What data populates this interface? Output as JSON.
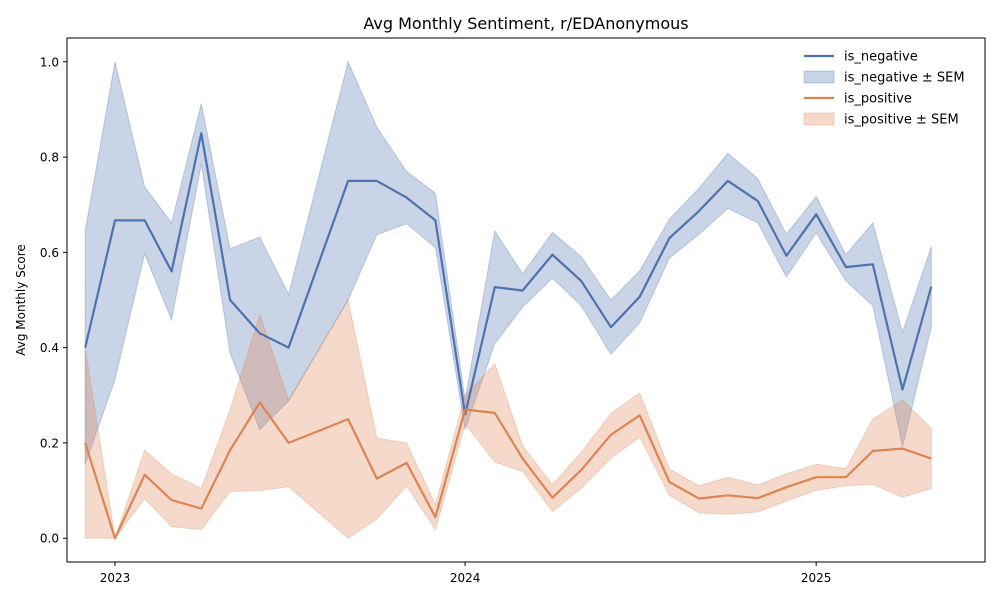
{
  "chart_data": {
    "type": "line",
    "title": "Avg Monthly Sentiment, r/EDAnonymous",
    "xlabel": "",
    "ylabel": "Avg Monthly Score",
    "x_ticks": [
      "2023",
      "2024",
      "2025"
    ],
    "x_tick_dates": [
      "2023-01-01",
      "2024-01-01",
      "2025-01-01"
    ],
    "x_range": [
      "2022-11-12",
      "2025-06-26"
    ],
    "y_ticks": [
      "0.0",
      "0.2",
      "0.4",
      "0.6",
      "0.8",
      "1.0"
    ],
    "ylim": [
      -0.05,
      1.05
    ],
    "legend_position": "top-right",
    "grid": false,
    "x": [
      "2022-12-01",
      "2023-01-01",
      "2023-02-01",
      "2023-03-01",
      "2023-04-01",
      "2023-05-01",
      "2023-06-01",
      "2023-07-01",
      "2023-09-01",
      "2023-10-01",
      "2023-11-01",
      "2023-12-01",
      "2024-01-01",
      "2024-02-01",
      "2024-03-01",
      "2024-04-01",
      "2024-05-01",
      "2024-06-01",
      "2024-07-01",
      "2024-08-01",
      "2024-09-01",
      "2024-10-01",
      "2024-11-01",
      "2024-12-01",
      "2025-01-01",
      "2025-02-01",
      "2025-03-01",
      "2025-04-01",
      "2025-05-01"
    ],
    "series": [
      {
        "name": "is_negative",
        "band_name": "is_negative ± SEM",
        "color": "#4c72b0",
        "values": [
          0.4,
          0.667,
          0.667,
          0.56,
          0.85,
          0.5,
          0.43,
          0.4,
          0.75,
          0.75,
          0.715,
          0.667,
          0.26,
          0.527,
          0.52,
          0.595,
          0.54,
          0.443,
          0.507,
          0.63,
          0.687,
          0.75,
          0.708,
          0.593,
          0.68,
          0.569,
          0.575,
          0.312,
          0.528
        ],
        "lower": [
          0.155,
          0.333,
          0.597,
          0.458,
          0.785,
          0.388,
          0.228,
          0.288,
          0.5,
          0.637,
          0.66,
          0.61,
          0.228,
          0.408,
          0.485,
          0.546,
          0.488,
          0.386,
          0.452,
          0.588,
          0.638,
          0.692,
          0.662,
          0.548,
          0.641,
          0.54,
          0.488,
          0.192,
          0.443
        ],
        "upper": [
          0.645,
          1.0,
          0.737,
          0.662,
          0.912,
          0.608,
          0.632,
          0.512,
          1.0,
          0.863,
          0.77,
          0.724,
          0.29,
          0.645,
          0.555,
          0.642,
          0.591,
          0.5,
          0.561,
          0.67,
          0.735,
          0.808,
          0.755,
          0.638,
          0.717,
          0.595,
          0.662,
          0.432,
          0.612
        ]
      },
      {
        "name": "is_positive",
        "band_name": "is_positive ± SEM",
        "color": "#dd8452",
        "values": [
          0.2,
          0.0,
          0.133,
          0.08,
          0.062,
          0.185,
          0.285,
          0.2,
          0.25,
          0.125,
          0.158,
          0.044,
          0.27,
          0.263,
          0.167,
          0.085,
          0.143,
          0.217,
          0.258,
          0.118,
          0.083,
          0.09,
          0.084,
          0.107,
          0.128,
          0.128,
          0.183,
          0.188,
          0.167
        ],
        "lower": [
          0.0,
          0.0,
          0.083,
          0.024,
          0.018,
          0.098,
          0.1,
          0.108,
          0.0,
          0.04,
          0.11,
          0.018,
          0.24,
          0.16,
          0.14,
          0.056,
          0.105,
          0.168,
          0.212,
          0.09,
          0.053,
          0.05,
          0.055,
          0.078,
          0.1,
          0.11,
          0.113,
          0.086,
          0.104
        ],
        "upper": [
          0.4,
          0.0,
          0.185,
          0.135,
          0.105,
          0.27,
          0.47,
          0.29,
          0.5,
          0.21,
          0.2,
          0.07,
          0.3,
          0.366,
          0.194,
          0.113,
          0.18,
          0.262,
          0.305,
          0.145,
          0.11,
          0.128,
          0.112,
          0.135,
          0.155,
          0.146,
          0.25,
          0.29,
          0.23
        ]
      }
    ]
  }
}
